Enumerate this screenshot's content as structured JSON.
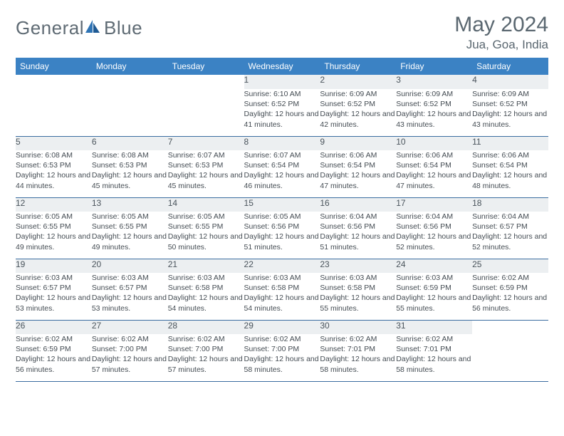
{
  "brand": {
    "name1": "General",
    "name2": "Blue"
  },
  "title": "May 2024",
  "location": "Jua, Goa, India",
  "colors": {
    "header_bg": "#3b82c4",
    "header_text": "#ffffff",
    "daynum_bg": "#eceff1",
    "rule": "#3b6da0",
    "text": "#444c53",
    "title_text": "#5a6770",
    "logo_text": "#5f6b74",
    "logo_accent": "#2f74b5"
  },
  "weekdays": [
    "Sunday",
    "Monday",
    "Tuesday",
    "Wednesday",
    "Thursday",
    "Friday",
    "Saturday"
  ],
  "weeks": [
    [
      null,
      null,
      null,
      {
        "n": "1",
        "sr": "6:10 AM",
        "ss": "6:52 PM",
        "dl": "12 hours and 41 minutes."
      },
      {
        "n": "2",
        "sr": "6:09 AM",
        "ss": "6:52 PM",
        "dl": "12 hours and 42 minutes."
      },
      {
        "n": "3",
        "sr": "6:09 AM",
        "ss": "6:52 PM",
        "dl": "12 hours and 43 minutes."
      },
      {
        "n": "4",
        "sr": "6:09 AM",
        "ss": "6:52 PM",
        "dl": "12 hours and 43 minutes."
      }
    ],
    [
      {
        "n": "5",
        "sr": "6:08 AM",
        "ss": "6:53 PM",
        "dl": "12 hours and 44 minutes."
      },
      {
        "n": "6",
        "sr": "6:08 AM",
        "ss": "6:53 PM",
        "dl": "12 hours and 45 minutes."
      },
      {
        "n": "7",
        "sr": "6:07 AM",
        "ss": "6:53 PM",
        "dl": "12 hours and 45 minutes."
      },
      {
        "n": "8",
        "sr": "6:07 AM",
        "ss": "6:54 PM",
        "dl": "12 hours and 46 minutes."
      },
      {
        "n": "9",
        "sr": "6:06 AM",
        "ss": "6:54 PM",
        "dl": "12 hours and 47 minutes."
      },
      {
        "n": "10",
        "sr": "6:06 AM",
        "ss": "6:54 PM",
        "dl": "12 hours and 47 minutes."
      },
      {
        "n": "11",
        "sr": "6:06 AM",
        "ss": "6:54 PM",
        "dl": "12 hours and 48 minutes."
      }
    ],
    [
      {
        "n": "12",
        "sr": "6:05 AM",
        "ss": "6:55 PM",
        "dl": "12 hours and 49 minutes."
      },
      {
        "n": "13",
        "sr": "6:05 AM",
        "ss": "6:55 PM",
        "dl": "12 hours and 49 minutes."
      },
      {
        "n": "14",
        "sr": "6:05 AM",
        "ss": "6:55 PM",
        "dl": "12 hours and 50 minutes."
      },
      {
        "n": "15",
        "sr": "6:05 AM",
        "ss": "6:56 PM",
        "dl": "12 hours and 51 minutes."
      },
      {
        "n": "16",
        "sr": "6:04 AM",
        "ss": "6:56 PM",
        "dl": "12 hours and 51 minutes."
      },
      {
        "n": "17",
        "sr": "6:04 AM",
        "ss": "6:56 PM",
        "dl": "12 hours and 52 minutes."
      },
      {
        "n": "18",
        "sr": "6:04 AM",
        "ss": "6:57 PM",
        "dl": "12 hours and 52 minutes."
      }
    ],
    [
      {
        "n": "19",
        "sr": "6:03 AM",
        "ss": "6:57 PM",
        "dl": "12 hours and 53 minutes."
      },
      {
        "n": "20",
        "sr": "6:03 AM",
        "ss": "6:57 PM",
        "dl": "12 hours and 53 minutes."
      },
      {
        "n": "21",
        "sr": "6:03 AM",
        "ss": "6:58 PM",
        "dl": "12 hours and 54 minutes."
      },
      {
        "n": "22",
        "sr": "6:03 AM",
        "ss": "6:58 PM",
        "dl": "12 hours and 54 minutes."
      },
      {
        "n": "23",
        "sr": "6:03 AM",
        "ss": "6:58 PM",
        "dl": "12 hours and 55 minutes."
      },
      {
        "n": "24",
        "sr": "6:03 AM",
        "ss": "6:59 PM",
        "dl": "12 hours and 55 minutes."
      },
      {
        "n": "25",
        "sr": "6:02 AM",
        "ss": "6:59 PM",
        "dl": "12 hours and 56 minutes."
      }
    ],
    [
      {
        "n": "26",
        "sr": "6:02 AM",
        "ss": "6:59 PM",
        "dl": "12 hours and 56 minutes."
      },
      {
        "n": "27",
        "sr": "6:02 AM",
        "ss": "7:00 PM",
        "dl": "12 hours and 57 minutes."
      },
      {
        "n": "28",
        "sr": "6:02 AM",
        "ss": "7:00 PM",
        "dl": "12 hours and 57 minutes."
      },
      {
        "n": "29",
        "sr": "6:02 AM",
        "ss": "7:00 PM",
        "dl": "12 hours and 58 minutes."
      },
      {
        "n": "30",
        "sr": "6:02 AM",
        "ss": "7:01 PM",
        "dl": "12 hours and 58 minutes."
      },
      {
        "n": "31",
        "sr": "6:02 AM",
        "ss": "7:01 PM",
        "dl": "12 hours and 58 minutes."
      },
      null
    ]
  ],
  "labels": {
    "sunrise": "Sunrise:",
    "sunset": "Sunset:",
    "daylight": "Daylight:"
  }
}
